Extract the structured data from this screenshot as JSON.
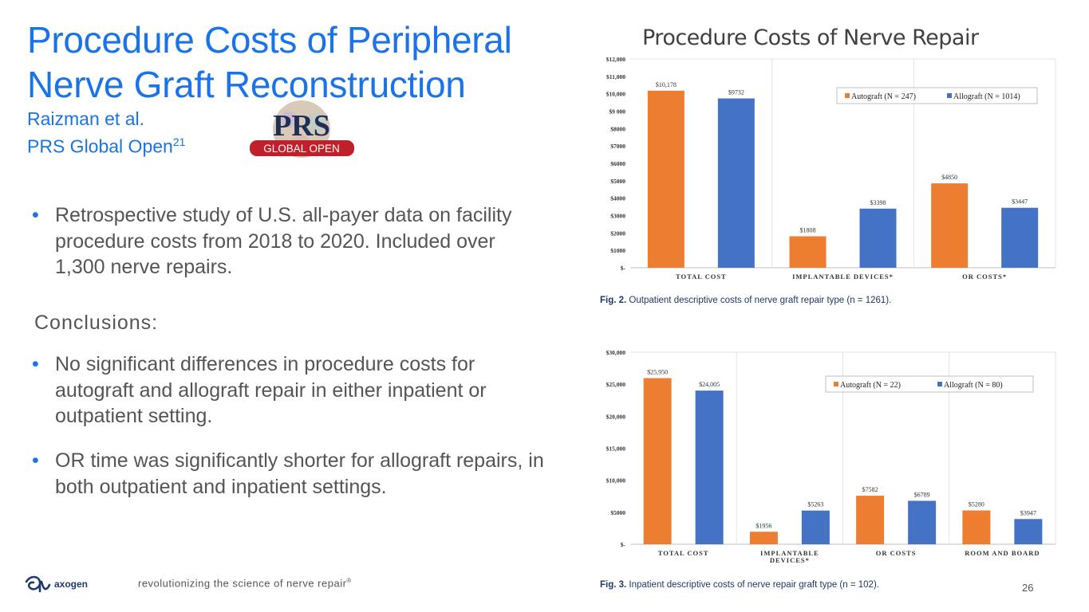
{
  "slide": {
    "title_line1": "Procedure Costs of Peripheral",
    "title_line2": "Nerve Graft Reconstruction",
    "citation_line1": "Raizman et al.",
    "citation_line2": "PRS Global Open",
    "citation_ref": "21",
    "logo": {
      "text": "PRS",
      "subtext": "GLOBAL OPEN",
      "accent": "#c0202a"
    },
    "bullets_intro": [
      "Retrospective study of U.S. all-payer data on facility procedure costs from 2018 to 2020. Included over 1,300 nerve repairs."
    ],
    "conclusions_label": "Conclusions:",
    "bullets_conclusions": [
      "No significant differences in procedure costs for autograft and allograft repair in either inpatient or outpatient setting.",
      "OR time was significantly shorter for allograft repairs, in both outpatient and inpatient settings."
    ],
    "chart_heading": "Procedure Costs of Nerve Repair",
    "fig2_caption_bold": "Fig. 2.",
    "fig2_caption": " Outpatient descriptive costs of nerve graft repair type (n = 1261).",
    "fig3_caption_bold": "Fig. 3.",
    "fig3_caption": " Inpatient descriptive costs of nerve repair graft type (n = 102).",
    "footer_brand": "axogen",
    "tagline": "revolutionizing the science of nerve repair",
    "tagline_mark": "®",
    "page_number": "26"
  },
  "colors": {
    "accent_blue": "#1a73e8",
    "autograft": "#ed7d31",
    "allograft": "#4472c4",
    "text_gray": "#555555"
  },
  "chart_data": [
    {
      "type": "bar",
      "categories": [
        "TOTAL COST",
        "IMPLANTABLE DEVICES*",
        "OR COSTS*"
      ],
      "series": [
        {
          "name": "Autograft (N = 247)",
          "values": [
            10178,
            1808,
            4850
          ],
          "labels": [
            "$10,178",
            "$1808",
            "$4850"
          ]
        },
        {
          "name": "Allograft (N = 1014)",
          "values": [
            9732,
            3398,
            3447
          ],
          "labels": [
            "$9732",
            "$3398",
            "$3447"
          ]
        }
      ],
      "yticks": [
        "$-",
        "$1000",
        "$2000",
        "$3000",
        "$4000",
        "$5000",
        "$6000",
        "$7000",
        "$8000",
        "$9 000",
        "$10,000",
        "$11,000",
        "$12,000"
      ],
      "ylim": [
        0,
        12000
      ],
      "legend_position": "top-right"
    },
    {
      "type": "bar",
      "categories": [
        "TOTAL COST",
        "IMPLANTABLE DEVICES*",
        "OR COSTS",
        "ROOM AND BOARD"
      ],
      "series": [
        {
          "name": "Autograft (N = 22)",
          "values": [
            25950,
            1956,
            7582,
            5280
          ],
          "labels": [
            "$25,950",
            "$1956",
            "$7582",
            "$5280"
          ]
        },
        {
          "name": "Allograft (N = 80)",
          "values": [
            24005,
            5263,
            6789,
            3947
          ],
          "labels": [
            "$24,005",
            "$5263",
            "$6789",
            "$3947"
          ]
        }
      ],
      "yticks": [
        "$-",
        "$5000",
        "$10,000",
        "$15,000",
        "$20,000",
        "$25,000",
        "$30,000"
      ],
      "ylim": [
        0,
        30000
      ],
      "legend_position": "top-right"
    }
  ]
}
